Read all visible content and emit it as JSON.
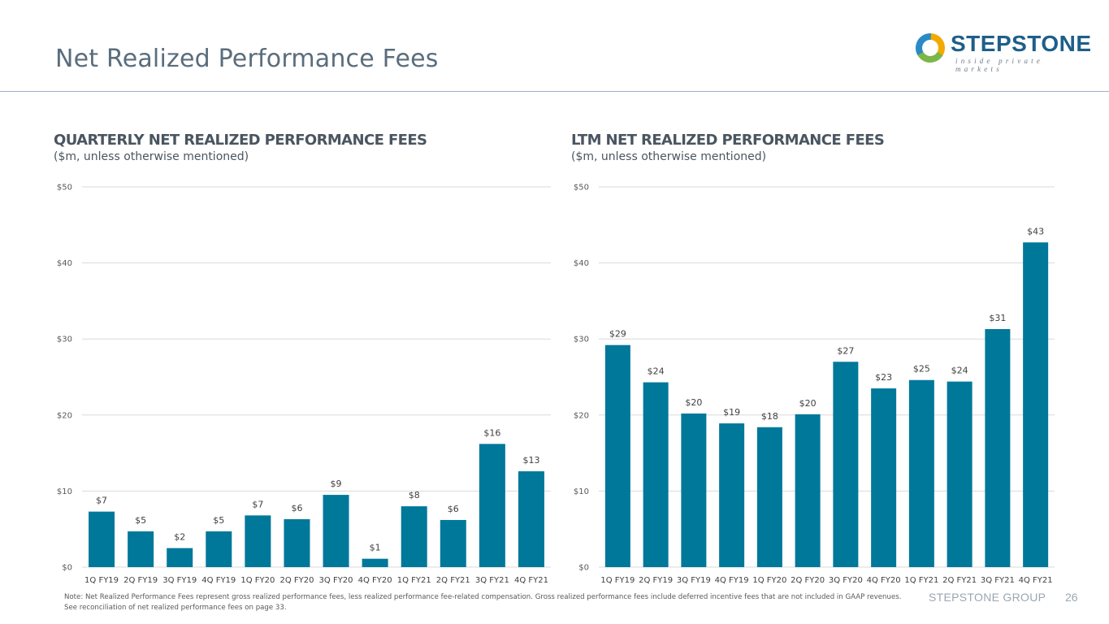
{
  "header": {
    "title": "Net Realized Performance Fees",
    "logo_name": "STEPSTONE",
    "logo_tagline": "inside private markets"
  },
  "footer": {
    "note": "Note: Net Realized Performance Fees represent gross realized performance fees, less realized performance fee-related compensation. Gross realized performance fees include deferred incentive fees that are not included in GAAP revenues. See reconciliation of net realized performance fees on page 33.",
    "brand": "STEPSTONE GROUP",
    "page_number": "26"
  },
  "colors": {
    "bar": "#00789a",
    "title": "#5a6d7c",
    "header_rule": "#9fb0c8"
  },
  "chart_data": [
    {
      "type": "bar",
      "title": "QUARTERLY NET REALIZED PERFORMANCE FEES",
      "subtitle": "($m, unless otherwise mentioned)",
      "categories": [
        "1Q FY19",
        "2Q FY19",
        "3Q FY19",
        "4Q FY19",
        "1Q FY20",
        "2Q FY20",
        "3Q FY20",
        "4Q FY20",
        "1Q FY21",
        "2Q FY21",
        "3Q FY21",
        "4Q FY21"
      ],
      "values": [
        7.3,
        4.7,
        2.5,
        4.7,
        6.8,
        6.3,
        9.5,
        1.1,
        8.0,
        6.2,
        16.2,
        12.6
      ],
      "data_labels": [
        "$7",
        "$5",
        "$2",
        "$5",
        "$7",
        "$6",
        "$9",
        "$1",
        "$8",
        "$6",
        "$16",
        "$13"
      ],
      "ylim": [
        0,
        50
      ],
      "yticks": [
        0,
        10,
        20,
        30,
        40,
        50
      ],
      "ytick_labels": [
        "$0",
        "$10",
        "$20",
        "$30",
        "$40",
        "$50"
      ],
      "xlabel": "",
      "ylabel": "",
      "grid": true
    },
    {
      "type": "bar",
      "title": "LTM NET REALIZED PERFORMANCE FEES",
      "subtitle": "($m, unless otherwise mentioned)",
      "categories": [
        "1Q FY19",
        "2Q FY19",
        "3Q FY19",
        "4Q FY19",
        "1Q FY20",
        "2Q FY20",
        "3Q FY20",
        "4Q FY20",
        "1Q FY21",
        "2Q FY21",
        "3Q FY21",
        "4Q FY21"
      ],
      "values": [
        29.2,
        24.3,
        20.2,
        18.9,
        18.4,
        20.1,
        27.0,
        23.5,
        24.6,
        24.4,
        31.3,
        42.7
      ],
      "data_labels": [
        "$29",
        "$24",
        "$20",
        "$19",
        "$18",
        "$20",
        "$27",
        "$23",
        "$25",
        "$24",
        "$31",
        "$43"
      ],
      "ylim": [
        0,
        50
      ],
      "yticks": [
        0,
        10,
        20,
        30,
        40,
        50
      ],
      "ytick_labels": [
        "$0",
        "$10",
        "$20",
        "$30",
        "$40",
        "$50"
      ],
      "xlabel": "",
      "ylabel": "",
      "grid": true
    }
  ]
}
